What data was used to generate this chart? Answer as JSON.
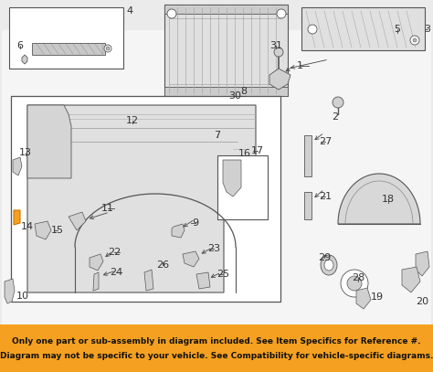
{
  "figsize": [
    4.74,
    4.07
  ],
  "dpi": 100,
  "bg_color": "#e8e8e8",
  "diagram_bg": "#f2f2f2",
  "banner_bg": "#f5a020",
  "banner_text": "Only one part or sub-assembly in diagram included. See Item Specifics for Reference #.\nDiagram may not be specific to your vehicle. See Compatibility for vehicle-specific diagrams.",
  "banner_fontsize": 6.5,
  "label_fontsize": 8,
  "highlight_color": "#f5a020"
}
